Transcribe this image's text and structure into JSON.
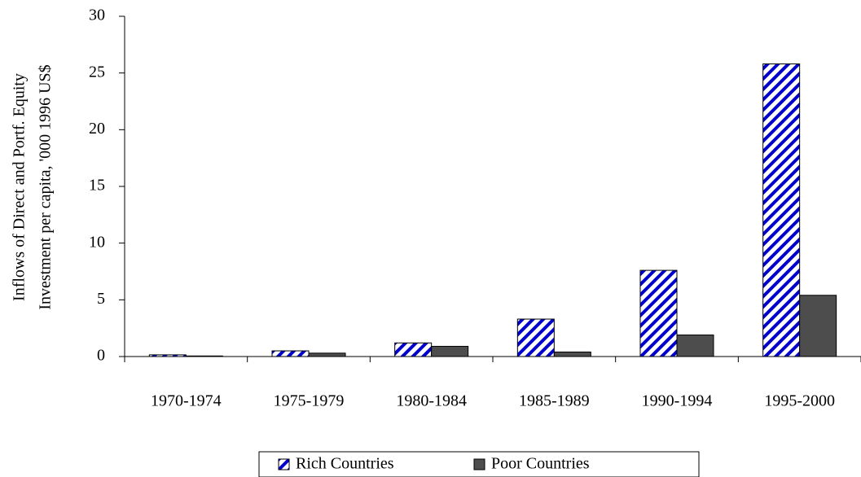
{
  "chart_data": {
    "type": "bar",
    "ylabel": [
      "Inflows of Direct and Portf. Equity",
      "Investment per capita, '000 1996 US$"
    ],
    "categories": [
      "1970-1974",
      "1975-1979",
      "1980-1984",
      "1985-1989",
      "1990-1994",
      "1995-2000"
    ],
    "series": [
      {
        "name": "Rich Countries",
        "color": "#0000cc",
        "hatch": true,
        "values": [
          0.15,
          0.5,
          1.2,
          3.3,
          7.6,
          25.8
        ]
      },
      {
        "name": "Poor Countries",
        "color": "#4d4d4d",
        "hatch": false,
        "values": [
          0.05,
          0.3,
          0.9,
          0.4,
          1.9,
          5.4
        ]
      }
    ],
    "ylim": [
      0,
      30
    ],
    "yticks": [
      0,
      5,
      10,
      15,
      20,
      25,
      30
    ],
    "grid": false,
    "legend": "bottom"
  }
}
